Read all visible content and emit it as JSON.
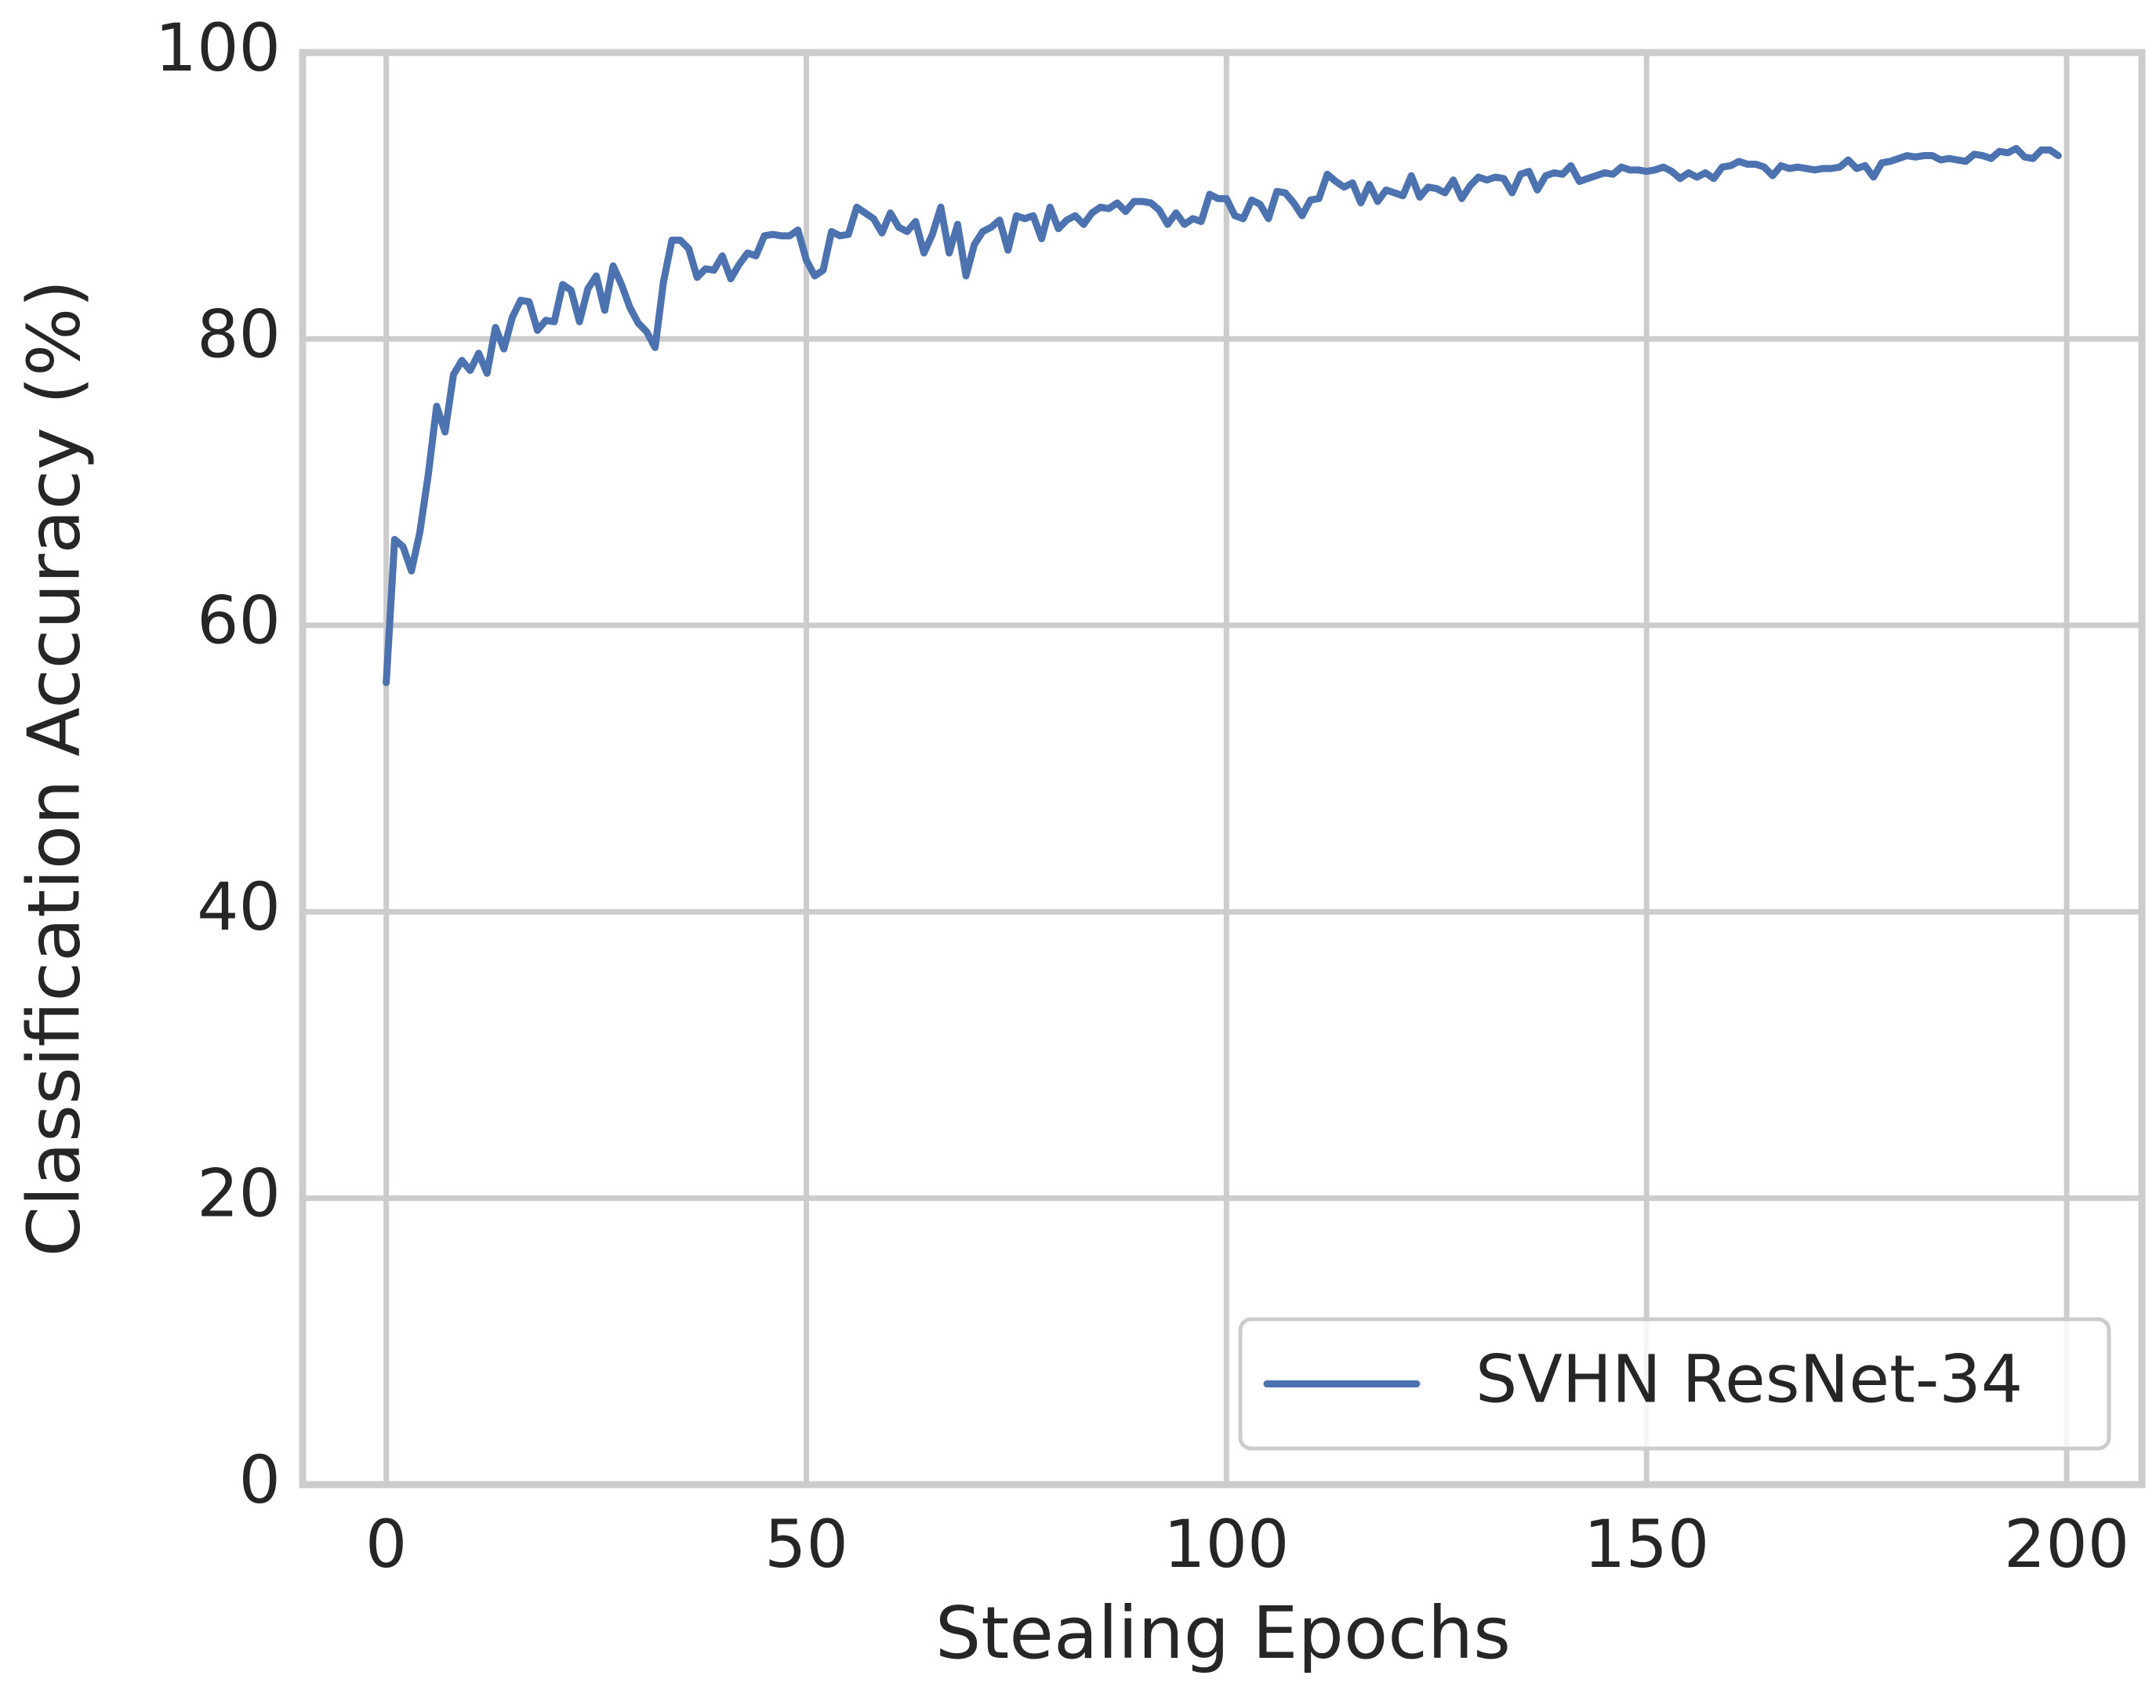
{
  "chart_data": {
    "type": "line",
    "xlabel": "Stealing Epochs",
    "ylabel": "Classification Accuracy (%)",
    "x": [
      0,
      1,
      2,
      3,
      4,
      5,
      6,
      7,
      8,
      9,
      10,
      11,
      12,
      13,
      14,
      15,
      16,
      17,
      18,
      19,
      20,
      21,
      22,
      23,
      24,
      25,
      26,
      27,
      28,
      29,
      30,
      31,
      32,
      33,
      34,
      35,
      36,
      37,
      38,
      39,
      40,
      41,
      42,
      43,
      44,
      45,
      46,
      47,
      48,
      49,
      50,
      51,
      52,
      53,
      54,
      55,
      56,
      57,
      58,
      59,
      60,
      61,
      62,
      63,
      64,
      65,
      66,
      67,
      68,
      69,
      70,
      71,
      72,
      73,
      74,
      75,
      76,
      77,
      78,
      79,
      80,
      81,
      82,
      83,
      84,
      85,
      86,
      87,
      88,
      89,
      90,
      91,
      92,
      93,
      94,
      95,
      96,
      97,
      98,
      99,
      100,
      101,
      102,
      103,
      104,
      105,
      106,
      107,
      108,
      109,
      110,
      111,
      112,
      113,
      114,
      115,
      116,
      117,
      118,
      119,
      120,
      121,
      122,
      123,
      124,
      125,
      126,
      127,
      128,
      129,
      130,
      131,
      132,
      133,
      134,
      135,
      136,
      137,
      138,
      139,
      140,
      141,
      142,
      143,
      144,
      145,
      146,
      147,
      148,
      149,
      150,
      151,
      152,
      153,
      154,
      155,
      156,
      157,
      158,
      159,
      160,
      161,
      162,
      163,
      164,
      165,
      166,
      167,
      168,
      169,
      170,
      171,
      172,
      173,
      174,
      175,
      176,
      177,
      178,
      179,
      180,
      181,
      182,
      183,
      184,
      185,
      186,
      187,
      188,
      189,
      190,
      191,
      192,
      193,
      194,
      195,
      196,
      197,
      198,
      199
    ],
    "series": [
      {
        "name": "SVHN ResNet-34",
        "color": "#4c72b0",
        "values": [
          56,
          66,
          65.5,
          63.8,
          66.5,
          70.5,
          75.3,
          73.5,
          77.5,
          78.5,
          77.8,
          79,
          77.6,
          80.8,
          79.3,
          81.5,
          82.7,
          82.6,
          80.6,
          81.3,
          81.2,
          83.8,
          83.4,
          81.2,
          83.5,
          84.4,
          82,
          85.1,
          83.8,
          82.2,
          81.1,
          80.5,
          79.4,
          84,
          86.9,
          86.9,
          86.3,
          84.3,
          84.9,
          84.8,
          85.8,
          84.2,
          85.2,
          86,
          85.8,
          87.2,
          87.3,
          87.2,
          87.2,
          87.6,
          85.5,
          84.4,
          84.8,
          87.5,
          87.2,
          87.3,
          89.2,
          88.8,
          88.4,
          87.4,
          88.8,
          87.8,
          87.5,
          88.2,
          86,
          87.3,
          89.2,
          86,
          88,
          84.4,
          86.6,
          87.5,
          87.8,
          88.3,
          86.2,
          88.6,
          88.4,
          88.6,
          87,
          89.2,
          87.7,
          88.3,
          88.6,
          88,
          88.8,
          89.2,
          89.1,
          89.5,
          88.9,
          89.6,
          89.6,
          89.5,
          89,
          88,
          88.8,
          88,
          88.4,
          88.2,
          90.1,
          89.8,
          89.8,
          88.6,
          88.4,
          89.7,
          89.4,
          88.4,
          90.3,
          90.2,
          89.5,
          88.6,
          89.7,
          89.8,
          91.5,
          91,
          90.6,
          90.9,
          89.5,
          90.8,
          89.6,
          90.4,
          90.2,
          90,
          91.4,
          89.9,
          90.6,
          90.5,
          90.2,
          91.1,
          89.8,
          90.7,
          91.3,
          91.1,
          91.3,
          91.2,
          90.2,
          91.5,
          91.7,
          90.4,
          91.4,
          91.6,
          91.5,
          92.1,
          91,
          91.2,
          91.4,
          91.6,
          91.5,
          92,
          91.8,
          91.8,
          91.7,
          91.8,
          92,
          91.7,
          91.2,
          91.6,
          91.3,
          91.6,
          91.2,
          92,
          92.1,
          92.4,
          92.2,
          92.2,
          92,
          91.4,
          92.1,
          91.9,
          92,
          91.9,
          91.8,
          91.9,
          91.9,
          92,
          92.5,
          91.9,
          92.1,
          91.3,
          92.3,
          92.4,
          92.6,
          92.8,
          92.7,
          92.8,
          92.8,
          92.5,
          92.6,
          92.5,
          92.4,
          92.9,
          92.8,
          92.6,
          93.1,
          93,
          93.3,
          92.7,
          92.6,
          93.2,
          93.2,
          92.8
        ]
      }
    ],
    "xlim": [
      -9.95,
      208.95
    ],
    "xticks": [
      0,
      50,
      100,
      150,
      200
    ],
    "ylim": [
      0,
      100
    ],
    "yticks": [
      0,
      20,
      40,
      60,
      80,
      100
    ],
    "grid": true,
    "legend": "lower right"
  }
}
